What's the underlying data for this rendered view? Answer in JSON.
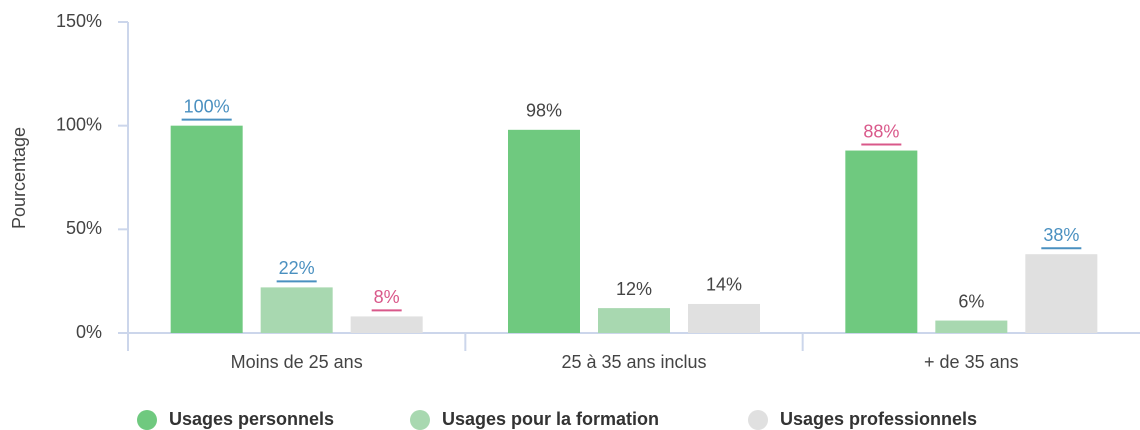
{
  "chart_data": {
    "type": "bar",
    "y_label": "Pourcentage",
    "categories": [
      "Moins de 25 ans",
      "25 à 35 ans inclus",
      "+ de 35 ans"
    ],
    "series": [
      {
        "name": "Usages personnels",
        "color": "#6fc97f",
        "values": [
          100,
          98,
          88
        ],
        "value_labels": [
          "100%",
          "98%",
          "88%"
        ],
        "label_colors": [
          "#4a90c0",
          "#444444",
          "#d9588a"
        ],
        "label_links": [
          true,
          false,
          true
        ]
      },
      {
        "name": "Usages pour la formation",
        "color": "#a8d8b0",
        "values": [
          22,
          12,
          6
        ],
        "value_labels": [
          "22%",
          "12%",
          "6%"
        ],
        "label_colors": [
          "#4a90c0",
          "#444444",
          "#444444"
        ],
        "label_links": [
          true,
          false,
          false
        ]
      },
      {
        "name": "Usages professionnels",
        "color": "#e0e0e0",
        "values": [
          8,
          14,
          38
        ],
        "value_labels": [
          "8%",
          "14%",
          "38%"
        ],
        "label_colors": [
          "#d9588a",
          "#444444",
          "#4a90c0"
        ],
        "label_links": [
          true,
          false,
          true
        ]
      }
    ],
    "ylim": [
      0,
      150
    ],
    "yticks": [
      {
        "value": 0,
        "label": "0%"
      },
      {
        "value": 50,
        "label": "50%"
      },
      {
        "value": 100,
        "label": "100%"
      },
      {
        "value": 150,
        "label": "150%"
      }
    ],
    "grid": false,
    "legend": "bottom"
  }
}
